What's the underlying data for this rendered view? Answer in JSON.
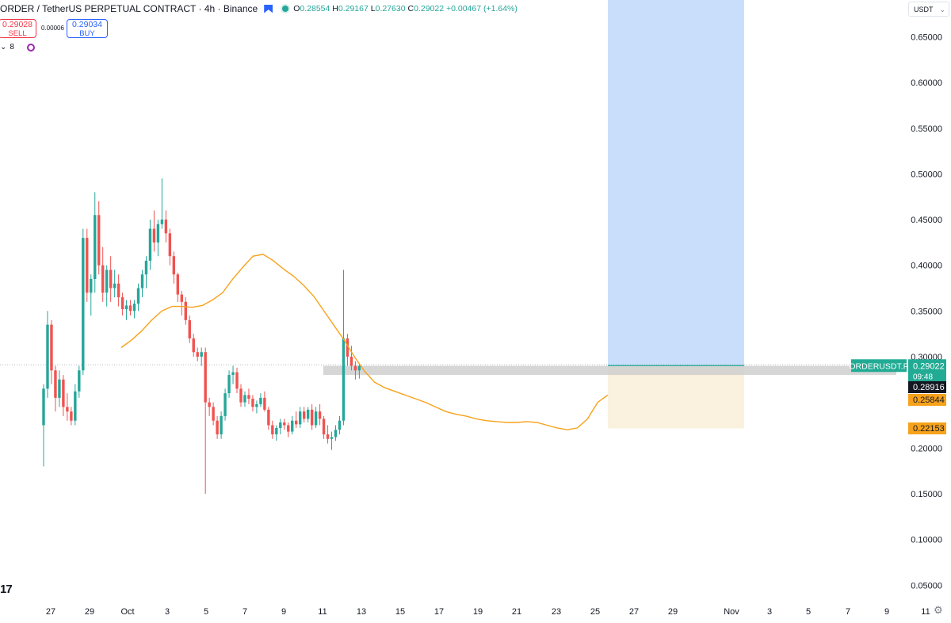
{
  "header": {
    "symbol": "ORDER / TetherUS PERPETUAL CONTRACT · 4h · Binance",
    "o_label": "O",
    "o_value": "0.28554",
    "h_label": "H",
    "h_value": "0.29167",
    "l_label": "L",
    "l_value": "0.27630",
    "c_label": "C",
    "c_value": "0.29022",
    "change": "+0.00467 (+1.64%)"
  },
  "trade": {
    "sell_price": "0.29028",
    "sell_label": "SELL",
    "spread": "0.00006",
    "buy_price": "0.29034",
    "buy_label": "BUY"
  },
  "indicators": {
    "count": "8"
  },
  "currency": "USDT",
  "logo_text": "17",
  "colors": {
    "up": "#26a69a",
    "down": "#ef5350",
    "ma": "#f7a21b",
    "profit_zone": "#c9defa",
    "loss_zone": "#faf1de",
    "sr_zone": "#cfcfcf",
    "price_label": "#22ab94",
    "level_dark": "#131722",
    "level_orange": "#f7a21b"
  },
  "chart_data": {
    "type": "candlestick",
    "timeframe": "4h",
    "ylim": [
      0.033,
      0.68
    ],
    "y_ticks": [
      "0.65000",
      "0.60000",
      "0.55000",
      "0.50000",
      "0.45000",
      "0.40000",
      "0.35000",
      "0.30000",
      "0.25000",
      "0.20000",
      "0.15000",
      "0.10000",
      "0.05000"
    ],
    "x_ticks": [
      "27",
      "29",
      "Oct",
      "3",
      "5",
      "7",
      "9",
      "11",
      "13",
      "15",
      "17",
      "19",
      "21",
      "23",
      "25",
      "27",
      "29",
      "Nov",
      "3",
      "5",
      "7",
      "9",
      "11"
    ],
    "candles_ohlc": [
      [
        0.225,
        0.27,
        0.18,
        0.265
      ],
      [
        0.265,
        0.35,
        0.255,
        0.335
      ],
      [
        0.335,
        0.34,
        0.27,
        0.285
      ],
      [
        0.285,
        0.29,
        0.24,
        0.255
      ],
      [
        0.255,
        0.285,
        0.245,
        0.275
      ],
      [
        0.275,
        0.28,
        0.235,
        0.245
      ],
      [
        0.245,
        0.26,
        0.23,
        0.24
      ],
      [
        0.24,
        0.245,
        0.225,
        0.23
      ],
      [
        0.23,
        0.27,
        0.225,
        0.262
      ],
      [
        0.262,
        0.29,
        0.255,
        0.285
      ],
      [
        0.285,
        0.44,
        0.28,
        0.43
      ],
      [
        0.43,
        0.44,
        0.36,
        0.37
      ],
      [
        0.37,
        0.39,
        0.345,
        0.385
      ],
      [
        0.385,
        0.48,
        0.37,
        0.455
      ],
      [
        0.455,
        0.47,
        0.39,
        0.4
      ],
      [
        0.4,
        0.42,
        0.36,
        0.37
      ],
      [
        0.37,
        0.4,
        0.355,
        0.395
      ],
      [
        0.395,
        0.41,
        0.36,
        0.375
      ],
      [
        0.375,
        0.395,
        0.365,
        0.38
      ],
      [
        0.38,
        0.39,
        0.355,
        0.365
      ],
      [
        0.365,
        0.37,
        0.345,
        0.352
      ],
      [
        0.352,
        0.362,
        0.34,
        0.356
      ],
      [
        0.356,
        0.362,
        0.345,
        0.35
      ],
      [
        0.35,
        0.362,
        0.342,
        0.358
      ],
      [
        0.358,
        0.38,
        0.35,
        0.375
      ],
      [
        0.375,
        0.395,
        0.365,
        0.39
      ],
      [
        0.39,
        0.41,
        0.375,
        0.405
      ],
      [
        0.405,
        0.45,
        0.395,
        0.44
      ],
      [
        0.44,
        0.46,
        0.415,
        0.425
      ],
      [
        0.425,
        0.45,
        0.41,
        0.445
      ],
      [
        0.445,
        0.495,
        0.44,
        0.45
      ],
      [
        0.45,
        0.46,
        0.425,
        0.435
      ],
      [
        0.435,
        0.44,
        0.4,
        0.41
      ],
      [
        0.41,
        0.415,
        0.38,
        0.39
      ],
      [
        0.39,
        0.392,
        0.36,
        0.368
      ],
      [
        0.368,
        0.372,
        0.345,
        0.36
      ],
      [
        0.36,
        0.365,
        0.335,
        0.34
      ],
      [
        0.34,
        0.345,
        0.315,
        0.32
      ],
      [
        0.32,
        0.325,
        0.3,
        0.305
      ],
      [
        0.305,
        0.31,
        0.295,
        0.3
      ],
      [
        0.3,
        0.31,
        0.29,
        0.305
      ],
      [
        0.305,
        0.31,
        0.15,
        0.25
      ],
      [
        0.25,
        0.255,
        0.235,
        0.245
      ],
      [
        0.245,
        0.25,
        0.225,
        0.23
      ],
      [
        0.23,
        0.235,
        0.21,
        0.215
      ],
      [
        0.215,
        0.24,
        0.21,
        0.235
      ],
      [
        0.235,
        0.265,
        0.23,
        0.26
      ],
      [
        0.26,
        0.285,
        0.255,
        0.28
      ],
      [
        0.28,
        0.29,
        0.27,
        0.283
      ],
      [
        0.283,
        0.288,
        0.26,
        0.265
      ],
      [
        0.265,
        0.27,
        0.245,
        0.25
      ],
      [
        0.25,
        0.262,
        0.245,
        0.258
      ],
      [
        0.258,
        0.265,
        0.248,
        0.254
      ],
      [
        0.254,
        0.258,
        0.24,
        0.245
      ],
      [
        0.245,
        0.252,
        0.238,
        0.248
      ],
      [
        0.248,
        0.26,
        0.245,
        0.255
      ],
      [
        0.255,
        0.262,
        0.24,
        0.242
      ],
      [
        0.242,
        0.245,
        0.22,
        0.225
      ],
      [
        0.225,
        0.23,
        0.21,
        0.215
      ],
      [
        0.215,
        0.225,
        0.208,
        0.222
      ],
      [
        0.222,
        0.232,
        0.215,
        0.228
      ],
      [
        0.228,
        0.232,
        0.22,
        0.225
      ],
      [
        0.225,
        0.228,
        0.212,
        0.218
      ],
      [
        0.218,
        0.235,
        0.215,
        0.23
      ],
      [
        0.23,
        0.24,
        0.222,
        0.226
      ],
      [
        0.226,
        0.245,
        0.222,
        0.24
      ],
      [
        0.24,
        0.245,
        0.228,
        0.232
      ],
      [
        0.232,
        0.245,
        0.228,
        0.242
      ],
      [
        0.242,
        0.248,
        0.22,
        0.225
      ],
      [
        0.225,
        0.245,
        0.222,
        0.24
      ],
      [
        0.24,
        0.248,
        0.225,
        0.232
      ],
      [
        0.232,
        0.235,
        0.21,
        0.215
      ],
      [
        0.215,
        0.225,
        0.205,
        0.21
      ],
      [
        0.21,
        0.218,
        0.198,
        0.212
      ],
      [
        0.212,
        0.225,
        0.208,
        0.22
      ],
      [
        0.22,
        0.235,
        0.215,
        0.23
      ],
      [
        0.23,
        0.395,
        0.225,
        0.32
      ],
      [
        0.32,
        0.325,
        0.29,
        0.3
      ],
      [
        0.3,
        0.312,
        0.285,
        0.29
      ],
      [
        0.29,
        0.295,
        0.275,
        0.285
      ],
      [
        0.285,
        0.292,
        0.276,
        0.29
      ]
    ],
    "moving_average": [
      0.31,
      0.318,
      0.328,
      0.34,
      0.35,
      0.355,
      0.355,
      0.354,
      0.356,
      0.362,
      0.37,
      0.385,
      0.398,
      0.41,
      0.412,
      0.405,
      0.396,
      0.388,
      0.378,
      0.366,
      0.35,
      0.334,
      0.318,
      0.3,
      0.284,
      0.272,
      0.266,
      0.262,
      0.258,
      0.254,
      0.25,
      0.245,
      0.24,
      0.237,
      0.235,
      0.232,
      0.23,
      0.229,
      0.228,
      0.228,
      0.229,
      0.228,
      0.225,
      0.222,
      0.22,
      0.222,
      0.232,
      0.25,
      0.258
    ],
    "position": {
      "entry": 0.29022,
      "target_top": 0.68,
      "stop": 0.22153
    },
    "sr_zone": [
      0.28,
      0.29
    ],
    "price_axis_labels": {
      "symbol_tag": "ORDERUSDT.P",
      "last_price": "0.29022",
      "countdown": "09:48",
      "level_dark": "0.28916",
      "level_orange": "0.25844",
      "stop_label": "0.22153"
    }
  }
}
